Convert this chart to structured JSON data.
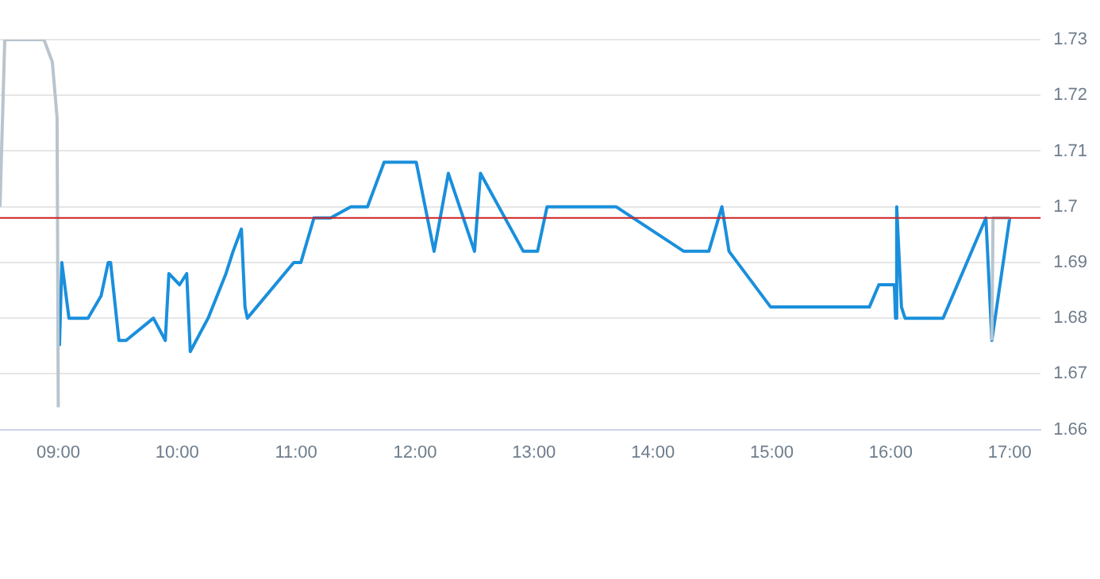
{
  "chart_data": {
    "type": "line",
    "xlim": [
      8.51,
      17.26
    ],
    "xticks": [
      {
        "value": 9,
        "label": "09:00"
      },
      {
        "value": 10,
        "label": "10:00"
      },
      {
        "value": 11,
        "label": "11:00"
      },
      {
        "value": 12,
        "label": "12:00"
      },
      {
        "value": 13,
        "label": "13:00"
      },
      {
        "value": 14,
        "label": "14:00"
      },
      {
        "value": 15,
        "label": "15:00"
      },
      {
        "value": 16,
        "label": "16:00"
      },
      {
        "value": 17,
        "label": "17:00"
      }
    ],
    "ylim": [
      1.66,
      1.73
    ],
    "yticks": [
      1.66,
      1.67,
      1.68,
      1.69,
      1.7,
      1.71,
      1.72,
      1.73
    ],
    "grid": "y",
    "legend": false,
    "marker": "none",
    "line_style": "solid",
    "series": [
      {
        "color": "#b8c4ce",
        "x": [
          8.51,
          8.55,
          8.88,
          8.95,
          8.99,
          9.0,
          12.0,
          16.85,
          16.86,
          17.0
        ],
        "values": [
          1.7,
          1.73,
          1.73,
          1.726,
          1.716,
          1.664,
          null,
          1.676,
          1.698,
          1.698
        ]
      },
      {
        "color": "#1a8fdc",
        "x": [
          9.01,
          9.03,
          9.09,
          9.25,
          9.36,
          9.42,
          9.44,
          9.51,
          9.57,
          9.8,
          9.9,
          9.93,
          10.02,
          10.08,
          10.11,
          10.26,
          10.41,
          10.47,
          10.54,
          10.57,
          10.59,
          10.98,
          11.04,
          11.15,
          11.29,
          11.46,
          11.6,
          11.74,
          12.01,
          12.16,
          12.28,
          12.5,
          12.55,
          12.91,
          13.03,
          13.11,
          13.69,
          14.26,
          14.47,
          14.58,
          14.64,
          14.99,
          15.82,
          15.9,
          16.03,
          16.04,
          16.05,
          16.09,
          16.12,
          16.44,
          16.8,
          16.85,
          17.0
        ],
        "values": [
          1.675,
          1.69,
          1.68,
          1.68,
          1.684,
          1.69,
          1.69,
          1.676,
          1.676,
          1.68,
          1.676,
          1.688,
          1.686,
          1.688,
          1.674,
          1.68,
          1.688,
          1.692,
          1.696,
          1.682,
          1.68,
          1.69,
          1.69,
          1.698,
          1.698,
          1.7,
          1.7,
          1.708,
          1.708,
          1.692,
          1.706,
          1.692,
          1.706,
          1.692,
          1.692,
          1.7,
          1.7,
          1.692,
          1.692,
          1.7,
          1.692,
          1.682,
          1.682,
          1.686,
          1.686,
          1.68,
          1.7,
          1.682,
          1.68,
          1.68,
          1.698,
          1.676,
          1.698
        ]
      }
    ],
    "ref_lines": [
      {
        "axis": "y",
        "value": 1.698,
        "color": "#cc2222"
      }
    ]
  }
}
